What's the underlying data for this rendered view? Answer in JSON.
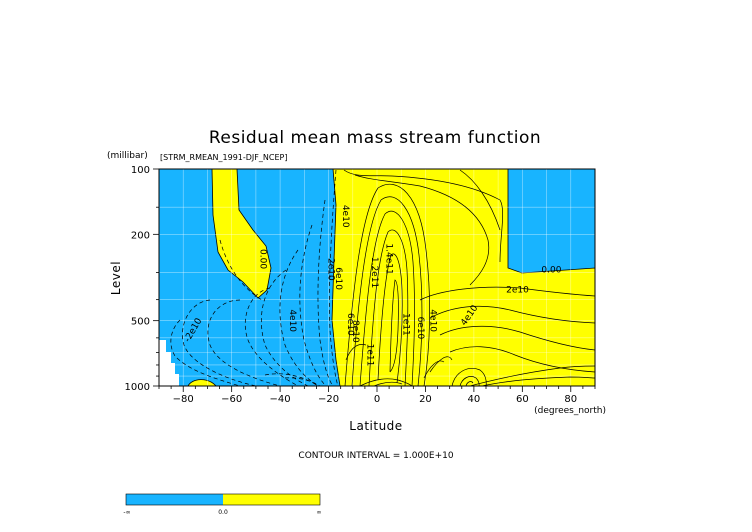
{
  "chart_data": {
    "type": "heatmap",
    "title": "Residual mean mass stream function",
    "subtitle": "[STRM_RMEAN_1991-DJF_NCEP]",
    "xlabel": "Latitude",
    "ylabel": "Level",
    "x_units": "(degrees_north)",
    "y_units": "(millibar)",
    "xlim": [
      -90,
      90
    ],
    "ylim": [
      1000,
      100
    ],
    "y_scale": "log",
    "x_ticks": [
      -80,
      -60,
      -40,
      -20,
      0,
      20,
      40,
      60,
      80
    ],
    "y_ticks": [
      100,
      200,
      500,
      1000
    ],
    "contour_interval_text": "CONTOUR INTERVAL = 1.000E+10",
    "colors": {
      "negative": "#18b4ff",
      "positive": "#ffff00",
      "missing": "#ffffff"
    },
    "colorbar": {
      "labels": [
        "-∞",
        "0.0",
        "∞"
      ]
    },
    "contour_labels": [
      {
        "text": "0.00",
        "x": -48,
        "p": 260
      },
      {
        "text": "4e10",
        "x": -36,
        "p": 500
      },
      {
        "text": "-2e10",
        "x": -75,
        "p": 560
      },
      {
        "text": "2e10",
        "x": -20,
        "p": 290
      },
      {
        "text": "6e10",
        "x": -17,
        "p": 320
      },
      {
        "text": "4e10",
        "x": -14,
        "p": 165
      },
      {
        "text": "6e10",
        "x": -12,
        "p": 520
      },
      {
        "text": "8e10",
        "x": -10,
        "p": 560
      },
      {
        "text": "1.2e11",
        "x": -2,
        "p": 300
      },
      {
        "text": "1.4e11",
        "x": 4,
        "p": 260
      },
      {
        "text": "1e11",
        "x": -4,
        "p": 720
      },
      {
        "text": "1e11",
        "x": 11,
        "p": 520
      },
      {
        "text": "6e10",
        "x": 17,
        "p": 540
      },
      {
        "text": "4e10",
        "x": 22,
        "p": 500
      },
      {
        "text": "4e10",
        "x": 39,
        "p": 480
      },
      {
        "text": "2e10",
        "x": 58,
        "p": 370
      },
      {
        "text": "0.00",
        "x": 72,
        "p": 300
      }
    ]
  }
}
